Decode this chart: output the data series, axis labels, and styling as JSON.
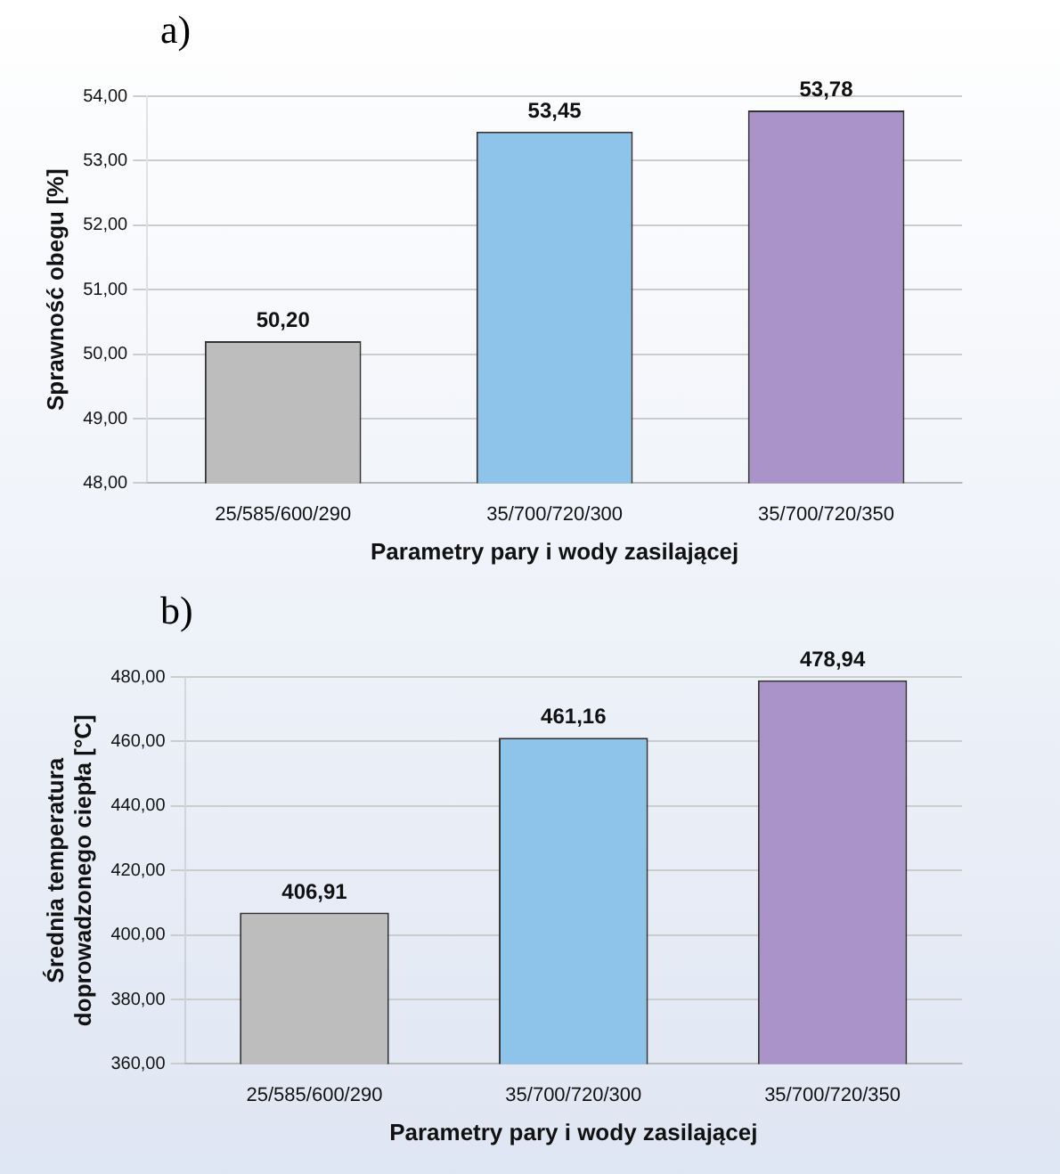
{
  "chart_data": [
    {
      "type": "bar",
      "title": "a)",
      "xlabel": "Parametry pary i wody zasilającej",
      "ylabel": "Sprawność obegu [%]",
      "categories": [
        "25/585/600/290",
        "35/700/720/300",
        "35/700/720/350"
      ],
      "values": [
        50.2,
        53.45,
        53.78
      ],
      "colors": [
        "#bdbdbd",
        "#8ec3ea",
        "#a993c9"
      ],
      "value_labels": [
        "50,20",
        "53,45",
        "53,78"
      ],
      "ylim": [
        48,
        54
      ],
      "yticks": [
        {
          "value": 48,
          "label": "48,00"
        },
        {
          "value": 49,
          "label": "49,00"
        },
        {
          "value": 50,
          "label": "50,00"
        },
        {
          "value": 51,
          "label": "51,00"
        },
        {
          "value": 52,
          "label": "52,00"
        },
        {
          "value": 53,
          "label": "53,00"
        },
        {
          "value": 54,
          "label": "54,00"
        }
      ],
      "grid": "y"
    },
    {
      "type": "bar",
      "title": "b)",
      "xlabel": "Parametry pary i wody zasilającej",
      "ylabel": "Średnia temperatura doprowadzonego ciepła [°C]",
      "categories": [
        "25/585/600/290",
        "35/700/720/300",
        "35/700/720/350"
      ],
      "values": [
        406.91,
        461.16,
        478.94
      ],
      "colors": [
        "#bdbdbd",
        "#8ec3ea",
        "#a993c9"
      ],
      "value_labels": [
        "406,91",
        "461,16",
        "478,94"
      ],
      "ylim": [
        360,
        480
      ],
      "yticks": [
        {
          "value": 360,
          "label": "360,00"
        },
        {
          "value": 380,
          "label": "380,00"
        },
        {
          "value": 400,
          "label": "400,00"
        },
        {
          "value": 420,
          "label": "420,00"
        },
        {
          "value": 440,
          "label": "440,00"
        },
        {
          "value": 460,
          "label": "460,00"
        },
        {
          "value": 480,
          "label": "480,00"
        }
      ],
      "grid": "y"
    }
  ]
}
